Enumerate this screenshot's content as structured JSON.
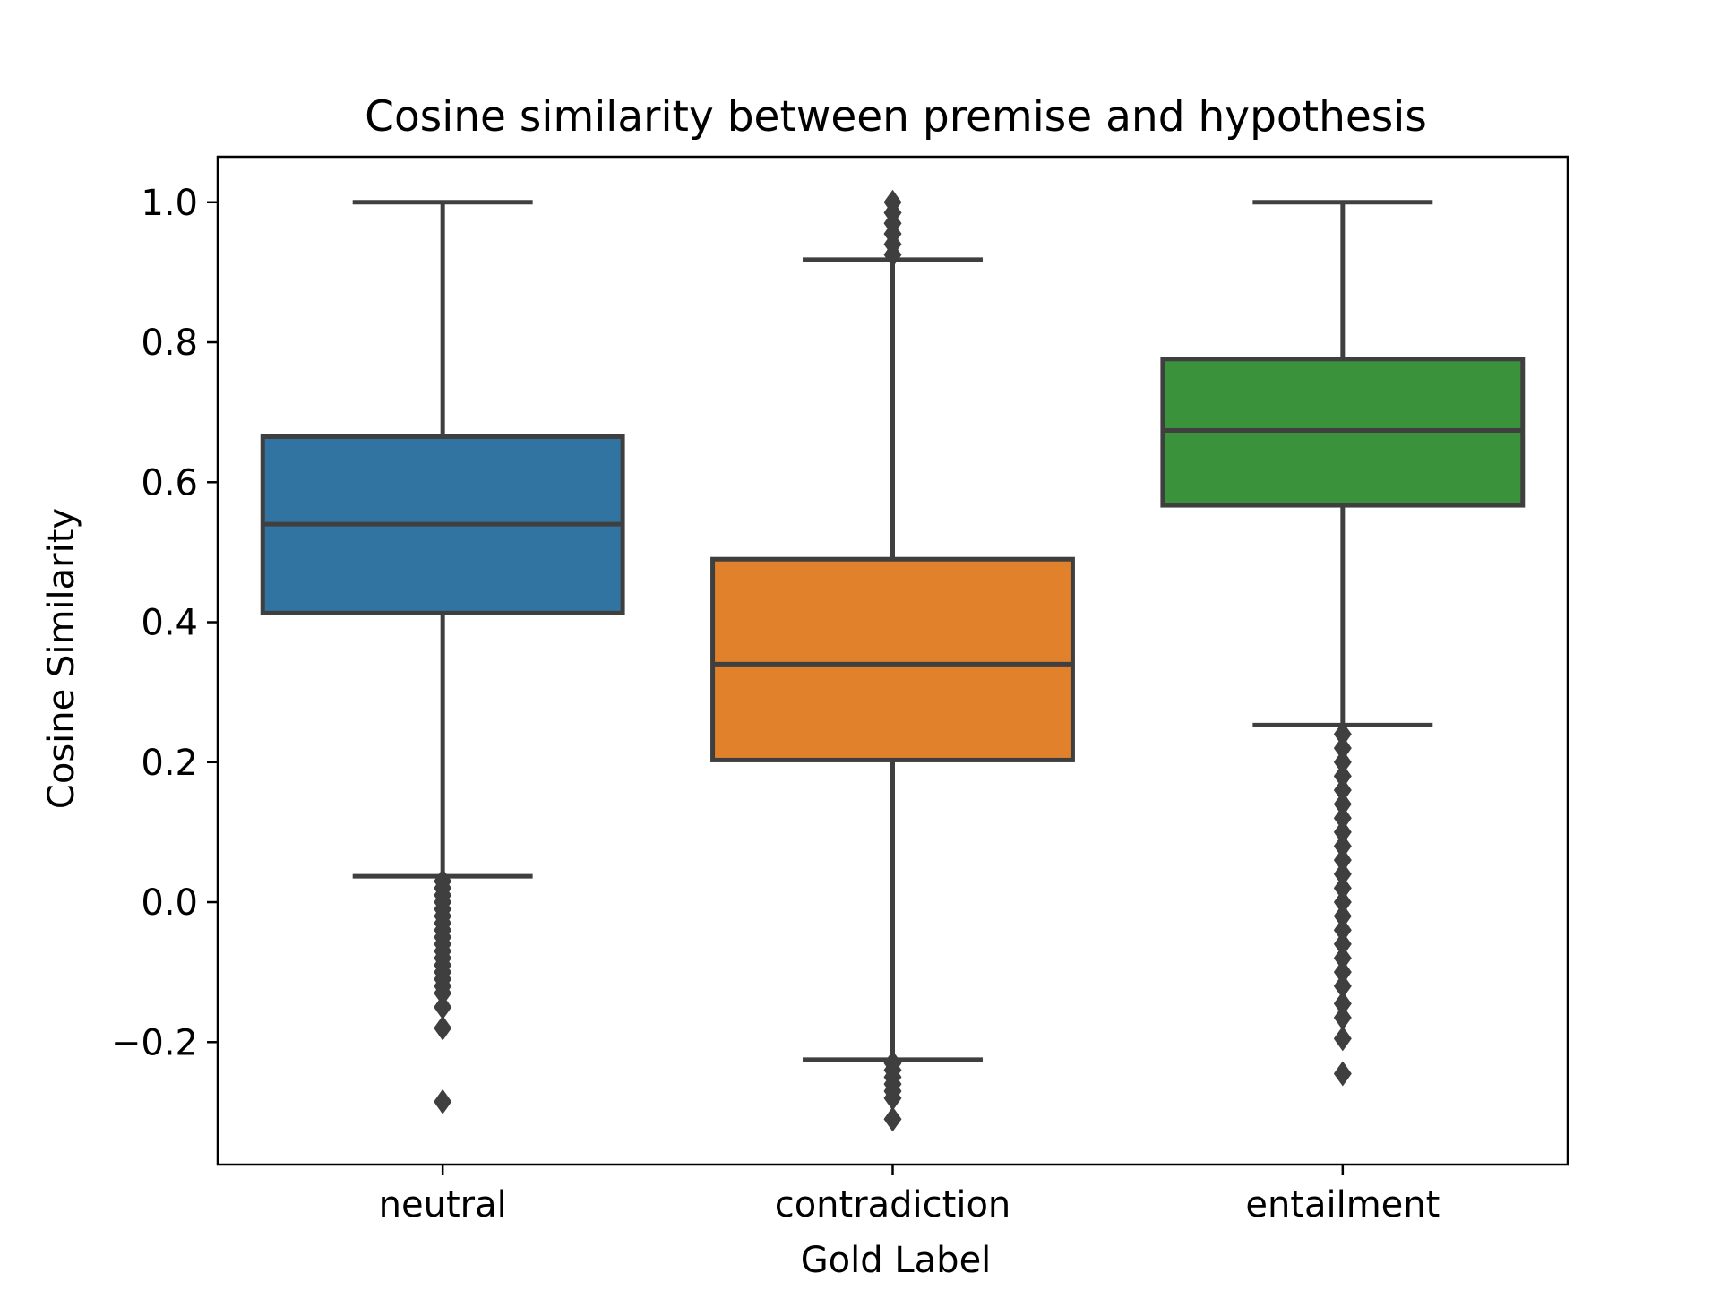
{
  "chart_data": {
    "type": "boxplot",
    "title": "Cosine similarity between premise and hypothesis",
    "xlabel": "Gold Label",
    "ylabel": "Cosine Similarity",
    "ylim": [
      -0.375,
      1.065
    ],
    "yticks": [
      -0.2,
      0.0,
      0.2,
      0.4,
      0.6,
      0.8,
      1.0
    ],
    "ytick_labels": [
      "−0.2",
      "0.0",
      "0.2",
      "0.4",
      "0.6",
      "0.8",
      "1.0"
    ],
    "grid": false,
    "legend": "none",
    "categories": [
      "neutral",
      "contradiction",
      "entailment"
    ],
    "boxes": [
      {
        "category": "neutral",
        "color": "#3274a1",
        "whisker_low": 0.037,
        "q1": 0.413,
        "median": 0.54,
        "q3": 0.665,
        "whisker_high": 1.0,
        "outliers": [
          0.03,
          0.02,
          0.01,
          0.0,
          -0.01,
          -0.02,
          -0.03,
          -0.04,
          -0.05,
          -0.06,
          -0.07,
          -0.08,
          -0.09,
          -0.1,
          -0.11,
          -0.12,
          -0.13,
          -0.15,
          -0.18,
          -0.285
        ]
      },
      {
        "category": "contradiction",
        "color": "#e1812c",
        "whisker_low": -0.225,
        "q1": 0.203,
        "median": 0.34,
        "q3": 0.49,
        "whisker_high": 0.918,
        "outliers": [
          0.925,
          0.94,
          0.955,
          0.97,
          0.985,
          1.0,
          -0.23,
          -0.24,
          -0.25,
          -0.26,
          -0.27,
          -0.28,
          -0.31
        ]
      },
      {
        "category": "entailment",
        "color": "#3a923a",
        "whisker_low": 0.253,
        "q1": 0.567,
        "median": 0.674,
        "q3": 0.776,
        "whisker_high": 1.0,
        "outliers": [
          0.24,
          0.22,
          0.2,
          0.18,
          0.16,
          0.14,
          0.12,
          0.1,
          0.08,
          0.06,
          0.04,
          0.02,
          0.0,
          -0.02,
          -0.04,
          -0.06,
          -0.08,
          -0.1,
          -0.12,
          -0.145,
          -0.165,
          -0.195,
          -0.245
        ]
      }
    ],
    "colors": {
      "line": "#3f3f3f",
      "axis": "#000000"
    }
  }
}
